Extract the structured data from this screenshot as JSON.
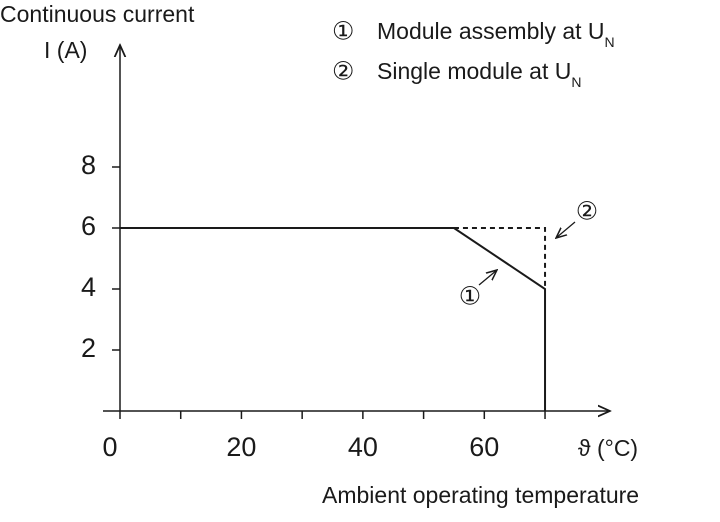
{
  "chart_data": {
    "type": "line",
    "y_label": "Continuous current",
    "y_unit_label": "I (A)",
    "x_unit_label": "ϑ (°C)",
    "x_label": "Ambient operating temperature",
    "xlim": [
      -2.8,
      80.7
    ],
    "ylim": [
      0,
      12
    ],
    "xticks": [
      0,
      20,
      40,
      60
    ],
    "xminorticks": [
      10,
      30,
      50,
      70
    ],
    "yticks": [
      2,
      4,
      6,
      8
    ],
    "color": "#1a1a1a",
    "series": [
      {
        "marker": "①",
        "name": "Module assembly at U",
        "name_subscript": "N",
        "dashed": false,
        "x": [
          0,
          55,
          70,
          70
        ],
        "values": [
          6,
          6,
          4,
          0
        ]
      },
      {
        "marker": "②",
        "name": "Single module at U",
        "name_subscript": "N",
        "dashed": true,
        "x": [
          55,
          70,
          70
        ],
        "values": [
          6,
          6,
          4
        ]
      }
    ]
  }
}
